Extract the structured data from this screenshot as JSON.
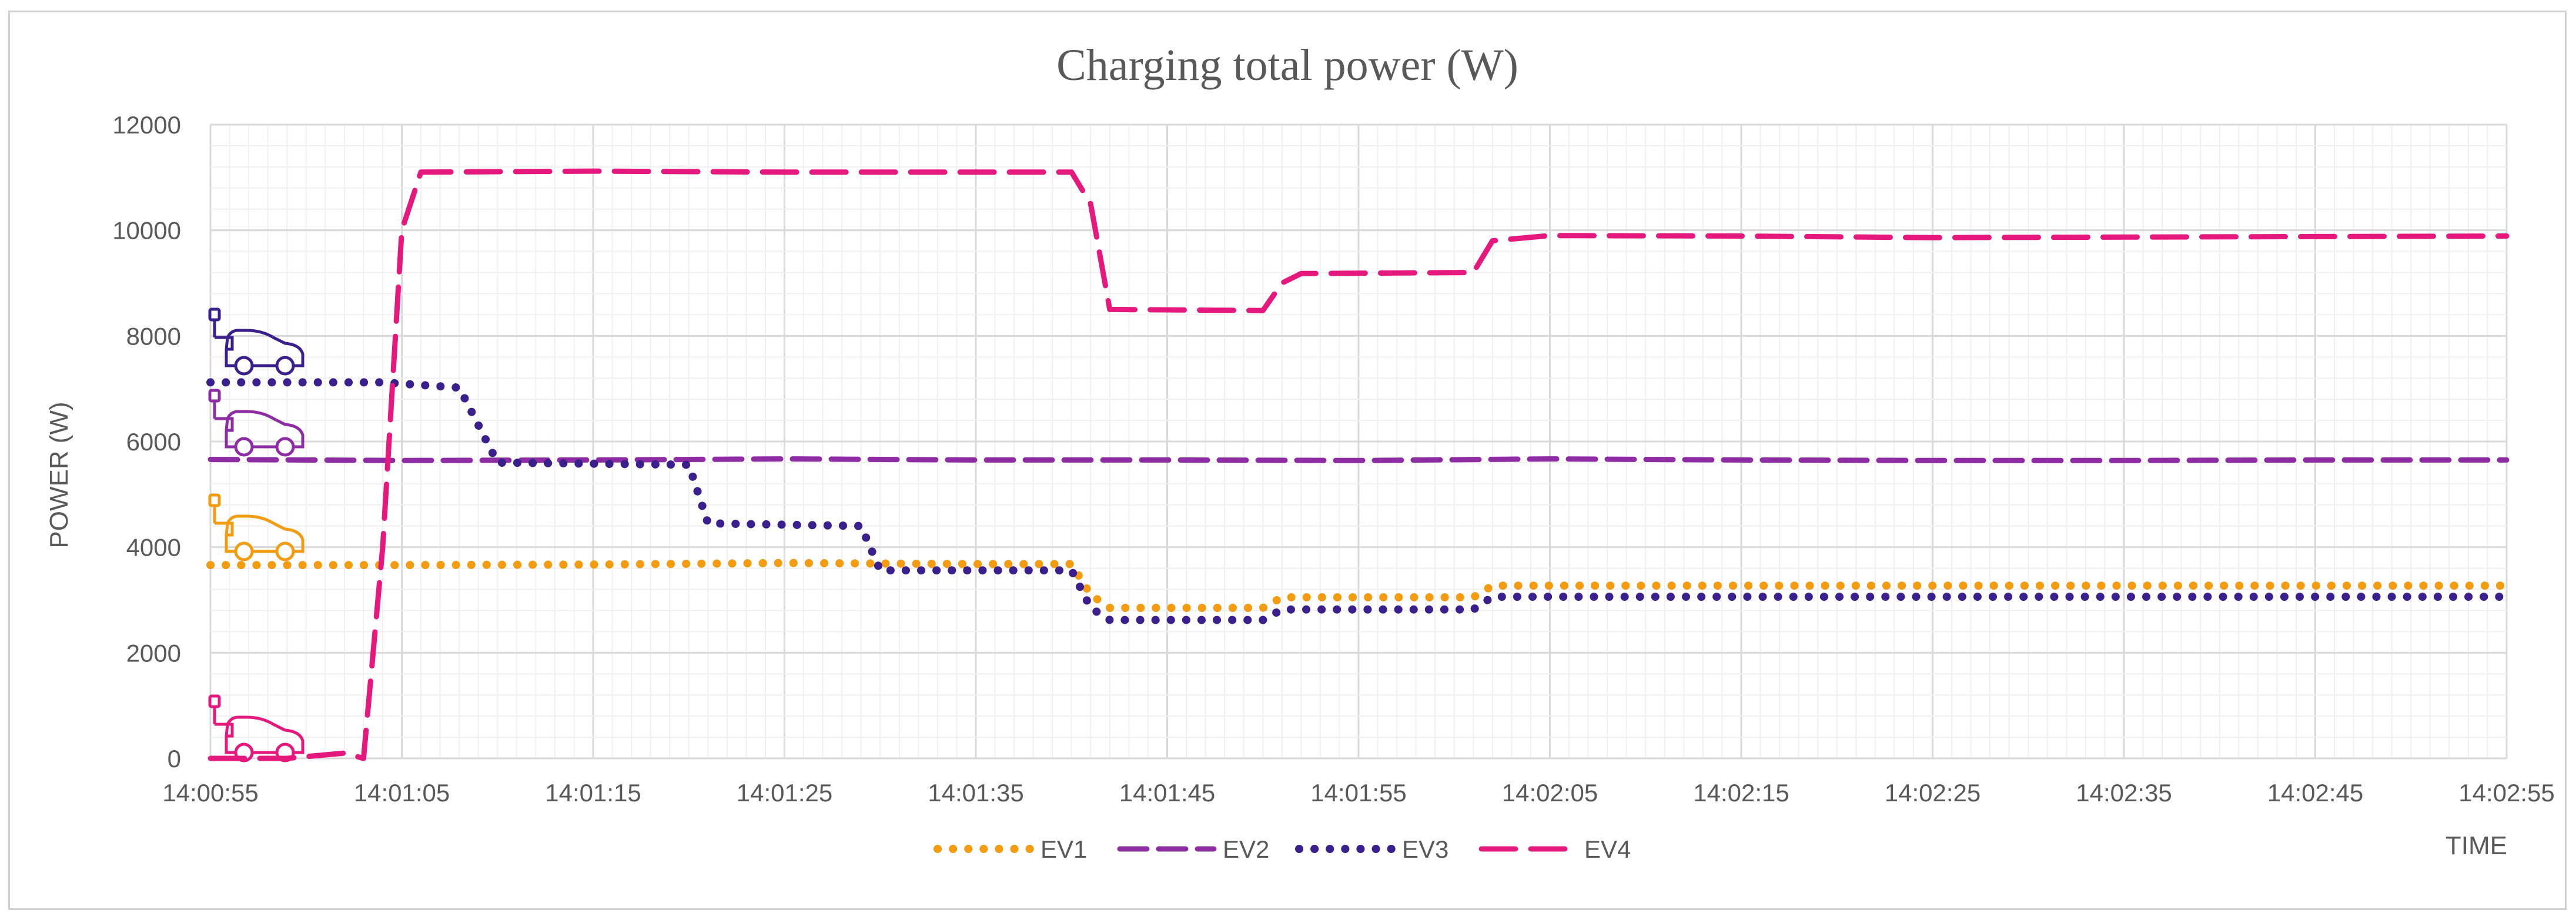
{
  "chart_data": {
    "type": "line",
    "title": "Charging total power (W)",
    "xlabel": "TIME",
    "ylabel": "POWER (W)",
    "ylim": [
      0,
      12000
    ],
    "yticks": [
      "0",
      "2000",
      "4000",
      "6000",
      "8000",
      "10000",
      "12000"
    ],
    "xlim": [
      "14:00:55",
      "14:02:55"
    ],
    "xticks": [
      "14:00:55",
      "14:01:05",
      "14:01:15",
      "14:01:25",
      "14:01:35",
      "14:01:45",
      "14:01:55",
      "14:02:05",
      "14:02:15",
      "14:02:25",
      "14:02:35",
      "14:02:45",
      "14:02:55"
    ],
    "grid": true,
    "legend_position": "bottom",
    "series": [
      {
        "name": "EV1",
        "color": "#f39c12",
        "style": "dotted",
        "x": [
          "14:00:55",
          "14:01:05",
          "14:01:15",
          "14:01:25",
          "14:01:35",
          "14:01:40",
          "14:01:41",
          "14:01:42",
          "14:01:50",
          "14:01:51",
          "14:02:01",
          "14:02:02",
          "14:02:55"
        ],
        "y": [
          3660,
          3660,
          3670,
          3700,
          3680,
          3680,
          3100,
          2850,
          2850,
          3050,
          3050,
          3270,
          3270
        ]
      },
      {
        "name": "EV2",
        "color": "#8e2ca3",
        "style": "long-dash",
        "x": [
          "14:00:55",
          "14:01:05",
          "14:01:15",
          "14:01:25",
          "14:01:35",
          "14:01:45",
          "14:01:55",
          "14:02:05",
          "14:02:15",
          "14:02:25",
          "14:02:35",
          "14:02:45",
          "14:02:55"
        ],
        "y": [
          5660,
          5640,
          5650,
          5670,
          5650,
          5650,
          5640,
          5670,
          5650,
          5640,
          5640,
          5650,
          5650
        ]
      },
      {
        "name": "EV3",
        "color": "#3b1f8c",
        "style": "dotted",
        "x": [
          "14:00:55",
          "14:01:04",
          "14:01:08",
          "14:01:10",
          "14:01:20",
          "14:01:21",
          "14:01:29",
          "14:01:30",
          "14:01:40",
          "14:01:41",
          "14:01:42",
          "14:01:50",
          "14:01:51",
          "14:02:01",
          "14:02:02",
          "14:02:55"
        ],
        "y": [
          7120,
          7120,
          7020,
          5600,
          5560,
          4450,
          4400,
          3560,
          3560,
          2850,
          2620,
          2620,
          2820,
          2820,
          3060,
          3060
        ]
      },
      {
        "name": "EV4",
        "color": "#e5197d",
        "style": "dashed",
        "x": [
          "14:00:55",
          "14:00:59",
          "14:01:02",
          "14:01:03",
          "14:01:04",
          "14:01:05",
          "14:01:06",
          "14:01:15",
          "14:01:25",
          "14:01:40",
          "14:01:41",
          "14:01:42",
          "14:01:50",
          "14:01:51",
          "14:01:52",
          "14:02:01",
          "14:02:02",
          "14:02:05",
          "14:02:15",
          "14:02:25",
          "14:02:35",
          "14:02:55"
        ],
        "y": [
          0,
          0,
          100,
          0,
          4000,
          10000,
          11100,
          11120,
          11100,
          11100,
          10500,
          8500,
          8480,
          9000,
          9180,
          9200,
          9800,
          9900,
          9890,
          9860,
          9870,
          9890
        ]
      }
    ]
  }
}
